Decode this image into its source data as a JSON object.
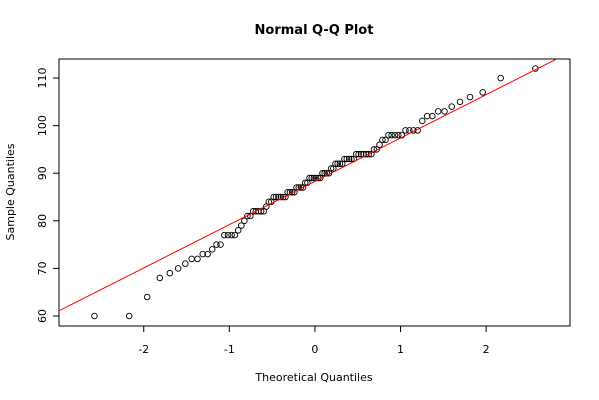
{
  "chart_data": {
    "type": "scatter",
    "title": "Normal Q-Q Plot",
    "x_label": "Theoretical Quantiles",
    "y_label": "Sample Quantiles",
    "x": [
      -2.576,
      -2.17,
      -1.96,
      -1.812,
      -1.695,
      -1.598,
      -1.514,
      -1.44,
      -1.372,
      -1.311,
      -1.254,
      -1.2,
      -1.15,
      -1.103,
      -1.058,
      -1.015,
      -0.974,
      -0.935,
      -0.896,
      -0.86,
      -0.824,
      -0.789,
      -0.755,
      -0.722,
      -0.69,
      -0.659,
      -0.628,
      -0.598,
      -0.568,
      -0.539,
      -0.51,
      -0.482,
      -0.454,
      -0.426,
      -0.399,
      -0.372,
      -0.345,
      -0.319,
      -0.292,
      -0.266,
      -0.24,
      -0.215,
      -0.189,
      -0.164,
      -0.138,
      -0.113,
      -0.088,
      -0.063,
      -0.038,
      -0.013,
      0.013,
      0.038,
      0.063,
      0.088,
      0.113,
      0.138,
      0.164,
      0.189,
      0.215,
      0.24,
      0.266,
      0.292,
      0.319,
      0.345,
      0.372,
      0.399,
      0.426,
      0.454,
      0.482,
      0.51,
      0.539,
      0.568,
      0.598,
      0.628,
      0.659,
      0.69,
      0.722,
      0.755,
      0.789,
      0.824,
      0.86,
      0.896,
      0.935,
      0.974,
      1.015,
      1.058,
      1.103,
      1.15,
      1.2,
      1.254,
      1.311,
      1.372,
      1.44,
      1.514,
      1.598,
      1.695,
      1.812,
      1.96,
      2.17,
      2.576
    ],
    "values": [
      60,
      60,
      64,
      68,
      69,
      70,
      71,
      72,
      72,
      73,
      73,
      74,
      75,
      75,
      77,
      77,
      77,
      77,
      78,
      79,
      80,
      81,
      81,
      82,
      82,
      82,
      82,
      82,
      83,
      84,
      84,
      85,
      85,
      85,
      85,
      85,
      85,
      86,
      86,
      86,
      86,
      87,
      87,
      87,
      87,
      88,
      88,
      89,
      89,
      89,
      89,
      89,
      89,
      90,
      90,
      90,
      90,
      91,
      91,
      92,
      92,
      92,
      92,
      93,
      93,
      93,
      93,
      93,
      94,
      94,
      94,
      94,
      94,
      94,
      94,
      95,
      95,
      96,
      97,
      97,
      98,
      98,
      98,
      98,
      98,
      99,
      99,
      99,
      99,
      101,
      102,
      102,
      103,
      103,
      104,
      105,
      106,
      107,
      110,
      112
    ],
    "color": "#000000",
    "line": {
      "intercept": 88.3,
      "slope": 9.1,
      "color": "#ff0000"
    },
    "xlim": [
      -2.99,
      2.98
    ],
    "xticks": [
      -2,
      -1,
      0,
      1,
      2
    ],
    "ylim": [
      57.9,
      114
    ],
    "yticks": [
      60,
      70,
      80,
      90,
      100,
      110
    ]
  }
}
